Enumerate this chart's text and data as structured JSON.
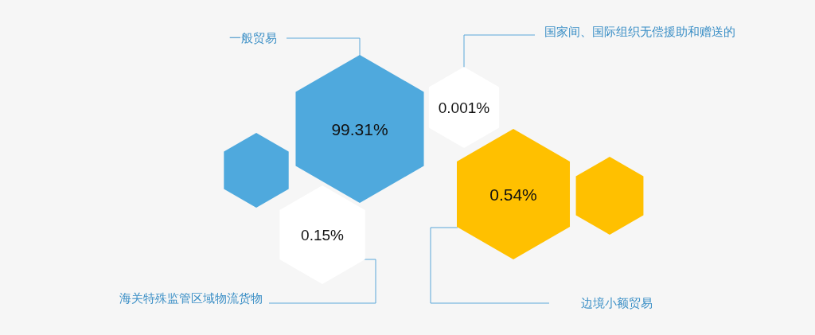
{
  "chart_data": {
    "type": "other",
    "categories": [
      "一般贸易",
      "国家间、国际组织无偿援助和赠送的",
      "海关特殊监管区域物流货物",
      "边境小额贸易"
    ],
    "values": [
      99.31,
      0.001,
      0.15,
      0.54
    ],
    "value_labels": [
      "99.31%",
      "0.001%",
      "0.15%",
      "0.54%"
    ],
    "colors": [
      "#4fa9dd",
      "#ffffff",
      "#ffffff",
      "#ffc000"
    ]
  }
}
